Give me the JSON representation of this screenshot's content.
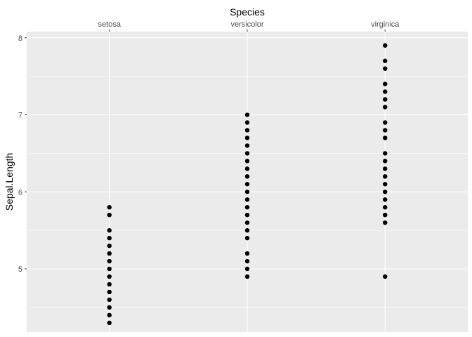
{
  "chart_data": {
    "type": "scatter",
    "title": "",
    "xlabel": "Species",
    "ylabel": "Sepal.Length",
    "x_axis_position": "top",
    "categories": [
      "setosa",
      "versicolor",
      "virginica"
    ],
    "ylim": [
      4.18,
      8.08
    ],
    "yticks": [
      5,
      6,
      7,
      8
    ],
    "grid": true,
    "legend": "none",
    "colors": {
      "panel": "#ebebeb",
      "grid": "#ffffff",
      "point": "#000000",
      "tick_text": "#4d4d4d",
      "title_text": "#000000"
    },
    "series": [
      {
        "category": "setosa",
        "values": [
          4.3,
          4.4,
          4.5,
          4.6,
          4.7,
          4.8,
          4.9,
          5.0,
          5.1,
          5.2,
          5.3,
          5.4,
          5.5,
          5.7,
          5.8
        ]
      },
      {
        "category": "versicolor",
        "values": [
          4.9,
          5.0,
          5.1,
          5.2,
          5.4,
          5.5,
          5.6,
          5.7,
          5.8,
          5.9,
          6.0,
          6.1,
          6.2,
          6.3,
          6.4,
          6.5,
          6.6,
          6.7,
          6.8,
          6.9,
          7.0
        ]
      },
      {
        "category": "virginica",
        "values": [
          4.9,
          5.6,
          5.7,
          5.8,
          5.9,
          6.0,
          6.1,
          6.2,
          6.3,
          6.4,
          6.5,
          6.7,
          6.8,
          6.9,
          7.1,
          7.2,
          7.3,
          7.4,
          7.6,
          7.7,
          7.9
        ]
      }
    ]
  }
}
